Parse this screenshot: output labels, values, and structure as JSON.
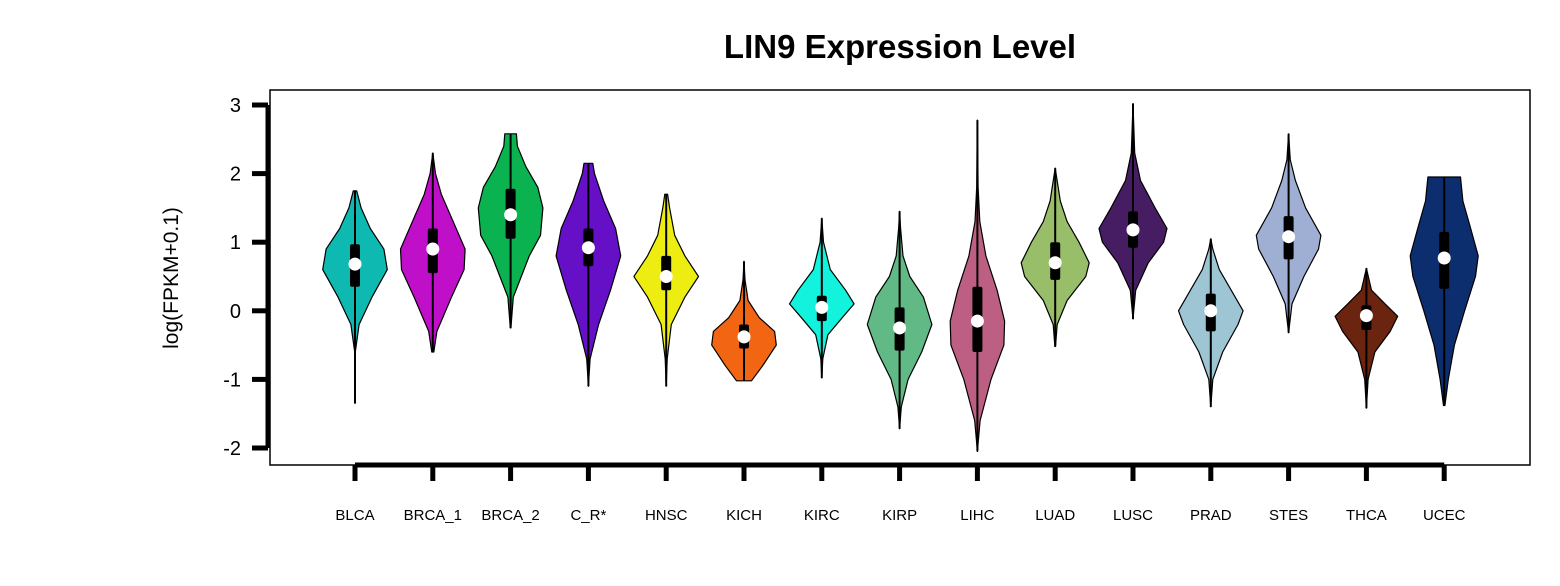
{
  "chart_data": {
    "type": "violin",
    "title": "LIN9 Expression Level",
    "xlabel": "",
    "ylabel": "log(FPKM+0.1)",
    "ylim": [
      -2,
      3
    ],
    "yticks": [
      -2,
      -1,
      0,
      1,
      2,
      3
    ],
    "grid": false,
    "legend": "none",
    "categories": [
      "BLCA",
      "BRCA_1",
      "BRCA_2",
      "C_R*",
      "HNSC",
      "KICH",
      "KIRC",
      "KIRP",
      "LIHC",
      "LUAD",
      "LUSC",
      "PRAD",
      "STES",
      "THCA",
      "UCEC"
    ],
    "colors": [
      "#0EB9B2",
      "#C00FC8",
      "#0AB350",
      "#6510C7",
      "#EDED12",
      "#F26613",
      "#12F2DC",
      "#61BA86",
      "#BC5F82",
      "#98BE69",
      "#461C63",
      "#9EC5D3",
      "#9FAFD4",
      "#6B2410",
      "#0D2E6E"
    ],
    "series": [
      {
        "min": -1.35,
        "max": 1.75,
        "q1": 0.35,
        "median": 0.68,
        "q3": 0.97,
        "profile": [
          [
            -1.35,
            0
          ],
          [
            -0.6,
            0.01
          ],
          [
            -0.2,
            0.12
          ],
          [
            0.2,
            0.5
          ],
          [
            0.6,
            0.95
          ],
          [
            0.9,
            0.85
          ],
          [
            1.2,
            0.45
          ],
          [
            1.5,
            0.18
          ],
          [
            1.75,
            0.05
          ]
        ]
      },
      {
        "min": -0.6,
        "max": 2.3,
        "q1": 0.55,
        "median": 0.9,
        "q3": 1.2,
        "profile": [
          [
            -0.6,
            0.03
          ],
          [
            -0.3,
            0.12
          ],
          [
            0.2,
            0.55
          ],
          [
            0.6,
            0.92
          ],
          [
            0.9,
            0.95
          ],
          [
            1.3,
            0.6
          ],
          [
            1.7,
            0.25
          ],
          [
            2.0,
            0.08
          ],
          [
            2.3,
            0
          ]
        ]
      },
      {
        "min": -0.25,
        "max": 2.58,
        "q1": 1.05,
        "median": 1.4,
        "q3": 1.78,
        "profile": [
          [
            -0.25,
            0.01
          ],
          [
            0.2,
            0.08
          ],
          [
            0.8,
            0.55
          ],
          [
            1.1,
            0.88
          ],
          [
            1.5,
            0.95
          ],
          [
            1.8,
            0.8
          ],
          [
            2.1,
            0.45
          ],
          [
            2.4,
            0.2
          ],
          [
            2.58,
            0.17
          ]
        ]
      },
      {
        "min": -1.1,
        "max": 2.15,
        "q1": 0.65,
        "median": 0.92,
        "q3": 1.2,
        "profile": [
          [
            -1.1,
            0
          ],
          [
            -0.7,
            0.05
          ],
          [
            -0.2,
            0.3
          ],
          [
            0.3,
            0.65
          ],
          [
            0.8,
            0.95
          ],
          [
            1.2,
            0.8
          ],
          [
            1.6,
            0.45
          ],
          [
            2.0,
            0.18
          ],
          [
            2.15,
            0.13
          ]
        ]
      },
      {
        "min": -1.1,
        "max": 1.7,
        "q1": 0.3,
        "median": 0.5,
        "q3": 0.8,
        "profile": [
          [
            -1.1,
            0
          ],
          [
            -0.7,
            0.03
          ],
          [
            -0.2,
            0.15
          ],
          [
            0.2,
            0.55
          ],
          [
            0.5,
            0.95
          ],
          [
            0.8,
            0.55
          ],
          [
            1.1,
            0.25
          ],
          [
            1.5,
            0.1
          ],
          [
            1.7,
            0.04
          ]
        ]
      },
      {
        "min": -1.02,
        "max": 0.72,
        "q1": -0.55,
        "median": -0.38,
        "q3": -0.2,
        "profile": [
          [
            -1.02,
            0.22
          ],
          [
            -0.8,
            0.55
          ],
          [
            -0.5,
            0.95
          ],
          [
            -0.3,
            0.9
          ],
          [
            -0.1,
            0.45
          ],
          [
            0.15,
            0.12
          ],
          [
            0.45,
            0.03
          ],
          [
            0.72,
            0
          ]
        ]
      },
      {
        "min": -0.98,
        "max": 1.35,
        "q1": -0.15,
        "median": 0.05,
        "q3": 0.22,
        "profile": [
          [
            -0.98,
            0
          ],
          [
            -0.7,
            0.03
          ],
          [
            -0.35,
            0.18
          ],
          [
            -0.1,
            0.6
          ],
          [
            0.1,
            0.95
          ],
          [
            0.3,
            0.7
          ],
          [
            0.6,
            0.25
          ],
          [
            1.0,
            0.05
          ],
          [
            1.35,
            0
          ]
        ]
      },
      {
        "min": -1.72,
        "max": 1.45,
        "q1": -0.58,
        "median": -0.25,
        "q3": 0.05,
        "profile": [
          [
            -1.72,
            0
          ],
          [
            -1.4,
            0.05
          ],
          [
            -1.0,
            0.25
          ],
          [
            -0.6,
            0.65
          ],
          [
            -0.2,
            0.95
          ],
          [
            0.2,
            0.7
          ],
          [
            0.5,
            0.3
          ],
          [
            0.8,
            0.1
          ],
          [
            1.2,
            0.03
          ],
          [
            1.45,
            0
          ]
        ]
      },
      {
        "min": -2.05,
        "max": 2.78,
        "q1": -0.6,
        "median": -0.15,
        "q3": 0.35,
        "profile": [
          [
            -2.05,
            0
          ],
          [
            -1.6,
            0.08
          ],
          [
            -1.0,
            0.4
          ],
          [
            -0.5,
            0.78
          ],
          [
            -0.15,
            0.8
          ],
          [
            0.3,
            0.58
          ],
          [
            0.8,
            0.25
          ],
          [
            1.3,
            0.07
          ],
          [
            1.8,
            0.02
          ],
          [
            2.78,
            0
          ]
        ]
      },
      {
        "min": -0.52,
        "max": 2.08,
        "q1": 0.45,
        "median": 0.7,
        "q3": 1.0,
        "profile": [
          [
            -0.52,
            0.01
          ],
          [
            -0.2,
            0.06
          ],
          [
            0.15,
            0.35
          ],
          [
            0.5,
            0.9
          ],
          [
            0.7,
            1.0
          ],
          [
            1.0,
            0.7
          ],
          [
            1.3,
            0.35
          ],
          [
            1.6,
            0.15
          ],
          [
            2.08,
            0
          ]
        ]
      },
      {
        "min": -0.12,
        "max": 3.02,
        "q1": 0.92,
        "median": 1.18,
        "q3": 1.45,
        "profile": [
          [
            -0.12,
            0
          ],
          [
            0.3,
            0.08
          ],
          [
            0.7,
            0.45
          ],
          [
            1.0,
            0.9
          ],
          [
            1.2,
            1.0
          ],
          [
            1.5,
            0.65
          ],
          [
            1.9,
            0.22
          ],
          [
            2.3,
            0.05
          ],
          [
            3.02,
            0
          ]
        ]
      },
      {
        "min": -1.4,
        "max": 1.05,
        "q1": -0.3,
        "median": 0.0,
        "q3": 0.25,
        "profile": [
          [
            -1.4,
            0
          ],
          [
            -1.0,
            0.06
          ],
          [
            -0.6,
            0.35
          ],
          [
            -0.2,
            0.8
          ],
          [
            0.0,
            0.95
          ],
          [
            0.3,
            0.6
          ],
          [
            0.6,
            0.25
          ],
          [
            0.9,
            0.06
          ],
          [
            1.05,
            0
          ]
        ]
      },
      {
        "min": -0.32,
        "max": 2.58,
        "q1": 0.75,
        "median": 1.08,
        "q3": 1.38,
        "profile": [
          [
            -0.32,
            0
          ],
          [
            0.1,
            0.1
          ],
          [
            0.5,
            0.45
          ],
          [
            0.9,
            0.88
          ],
          [
            1.1,
            0.95
          ],
          [
            1.5,
            0.5
          ],
          [
            1.9,
            0.2
          ],
          [
            2.2,
            0.05
          ],
          [
            2.58,
            0
          ]
        ]
      },
      {
        "min": -1.42,
        "max": 0.62,
        "q1": -0.28,
        "median": -0.07,
        "q3": 0.08,
        "profile": [
          [
            -1.42,
            0
          ],
          [
            -1.0,
            0.05
          ],
          [
            -0.6,
            0.25
          ],
          [
            -0.3,
            0.7
          ],
          [
            -0.08,
            0.92
          ],
          [
            0.1,
            0.55
          ],
          [
            0.3,
            0.15
          ],
          [
            0.62,
            0
          ]
        ]
      },
      {
        "min": -1.38,
        "max": 1.95,
        "q1": 0.32,
        "median": 0.77,
        "q3": 1.15,
        "profile": [
          [
            -1.38,
            0.02
          ],
          [
            -1.0,
            0.12
          ],
          [
            -0.5,
            0.3
          ],
          [
            0.0,
            0.6
          ],
          [
            0.5,
            0.92
          ],
          [
            0.8,
            1.0
          ],
          [
            1.2,
            0.78
          ],
          [
            1.6,
            0.55
          ],
          [
            1.95,
            0.48
          ]
        ]
      }
    ]
  }
}
